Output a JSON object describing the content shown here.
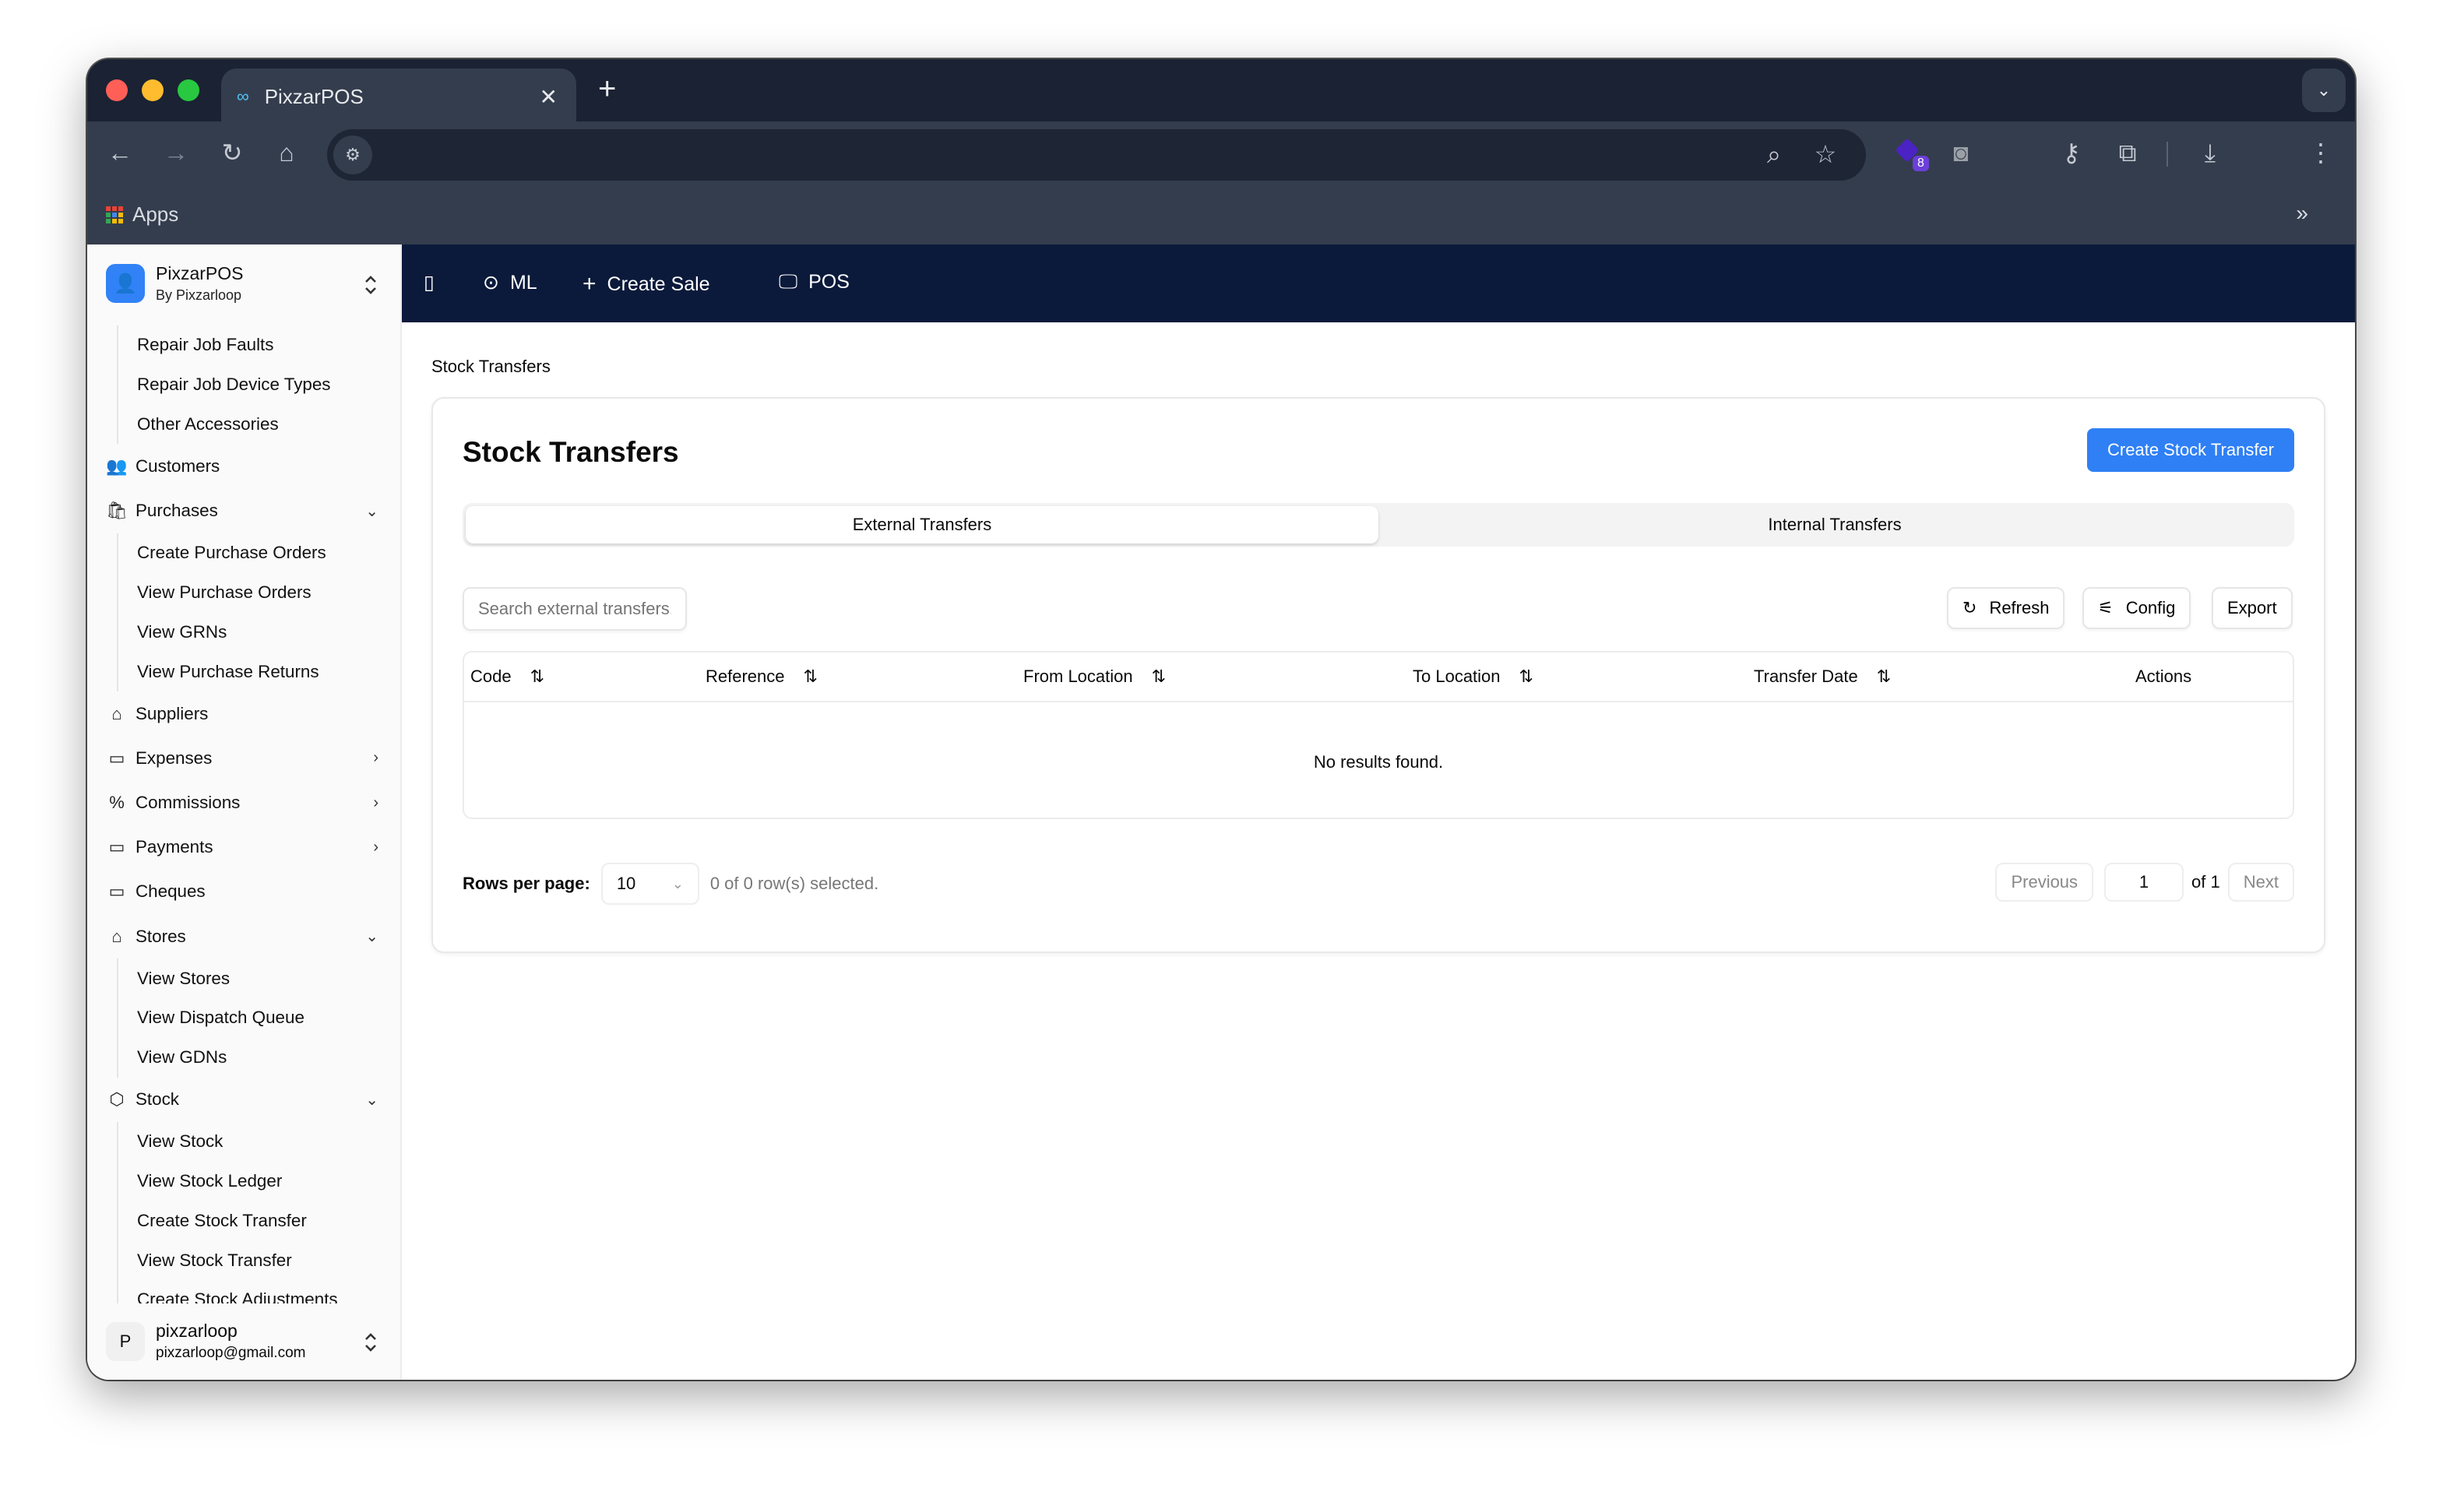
{
  "browser": {
    "tab_title": "PixzarPOS",
    "new_tab": "+",
    "bookmarks": [
      {
        "label": "Apps"
      }
    ],
    "extension_badge": "8",
    "colors": {
      "close": "#ff5f57",
      "minimize": "#febc2e",
      "maximize": "#28c840"
    }
  },
  "sidebar": {
    "brand": {
      "name": "PixzarPOS",
      "subtitle": "By Pixzarloop"
    },
    "items": [
      {
        "label": "Repair Job Faults",
        "sub": true
      },
      {
        "label": "Repair Job Device Types",
        "sub": true
      },
      {
        "label": "Other Accessories",
        "sub": true
      },
      {
        "label": "Customers",
        "icon": "users-icon",
        "glyph": "👥"
      },
      {
        "label": "Purchases",
        "icon": "shopping-bag-icon",
        "glyph": "🛍",
        "chevron": "down"
      },
      {
        "label": "Create Purchase Orders",
        "sub": true
      },
      {
        "label": "View Purchase Orders",
        "sub": true
      },
      {
        "label": "View GRNs",
        "sub": true
      },
      {
        "label": "View Purchase Returns",
        "sub": true
      },
      {
        "label": "Suppliers",
        "icon": "store-icon",
        "glyph": "⌂"
      },
      {
        "label": "Expenses",
        "icon": "wallet-icon",
        "glyph": "▭",
        "chevron": "right"
      },
      {
        "label": "Commissions",
        "icon": "percent-icon",
        "glyph": "%",
        "chevron": "right"
      },
      {
        "label": "Payments",
        "icon": "credit-card-icon",
        "glyph": "▭",
        "chevron": "right"
      },
      {
        "label": "Cheques",
        "icon": "credit-card-icon",
        "glyph": "▭"
      },
      {
        "label": "Stores",
        "icon": "store-icon",
        "glyph": "⌂",
        "chevron": "down"
      },
      {
        "label": "View Stores",
        "sub": true
      },
      {
        "label": "View Dispatch Queue",
        "sub": true
      },
      {
        "label": "View GDNs",
        "sub": true
      },
      {
        "label": "Stock",
        "icon": "package-icon",
        "glyph": "⬡",
        "chevron": "down"
      },
      {
        "label": "View Stock",
        "sub": true
      },
      {
        "label": "View Stock Ledger",
        "sub": true
      },
      {
        "label": "Create Stock Transfer",
        "sub": true
      },
      {
        "label": "View Stock Transfer",
        "sub": true
      },
      {
        "label": "Create Stock Adjustments",
        "sub": true
      }
    ],
    "user": {
      "initial": "P",
      "name": "pixzarloop",
      "email": "pixzarloop@gmail.com"
    }
  },
  "appbar": {
    "location": "ML",
    "create_sale": "Create Sale",
    "pos": "POS",
    "color": "#0b1a3b"
  },
  "page": {
    "breadcrumb": "Stock Transfers",
    "title": "Stock Transfers",
    "create_button": "Create Stock Transfer",
    "accent": "#2f80f5",
    "tabs": [
      {
        "label": "External Transfers",
        "active": true
      },
      {
        "label": "Internal Transfers",
        "active": false
      }
    ],
    "search_placeholder": "Search external transfers...",
    "refresh": "Refresh",
    "config": "Config",
    "export": "Export",
    "columns": [
      "Code",
      "Reference",
      "From Location",
      "To Location",
      "Transfer Date",
      "Actions"
    ],
    "empty": "No results found.",
    "pagination": {
      "rows_label": "Rows per page:",
      "rows_value": "10",
      "selected": "0 of 0 row(s) selected.",
      "previous": "Previous",
      "page": "1",
      "of": "of 1",
      "next": "Next"
    }
  }
}
